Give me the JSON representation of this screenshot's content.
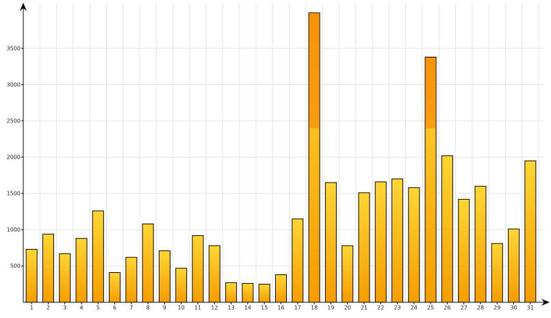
{
  "chart_data": {
    "type": "bar",
    "categories": [
      "1",
      "2",
      "3",
      "4",
      "5",
      "6",
      "7",
      "8",
      "9",
      "10",
      "11",
      "12",
      "13",
      "14",
      "15",
      "16",
      "17",
      "18",
      "19",
      "20",
      "21",
      "22",
      "23",
      "24",
      "25",
      "26",
      "27",
      "28",
      "29",
      "30",
      "31"
    ],
    "values": [
      730,
      940,
      670,
      880,
      1260,
      410,
      620,
      1080,
      710,
      470,
      920,
      780,
      270,
      260,
      250,
      380,
      1150,
      3990,
      1650,
      780,
      1510,
      1660,
      1700,
      1580,
      3380,
      2020,
      1420,
      1600,
      810,
      1010,
      1950
    ],
    "color": "#fbc02d",
    "highlight_color": "#f7940c",
    "highlight_above": 2400,
    "ylim": [
      0,
      4120
    ],
    "yticks": [
      500,
      1000,
      1500,
      2000,
      2500,
      3000,
      3500
    ],
    "grid": true
  }
}
